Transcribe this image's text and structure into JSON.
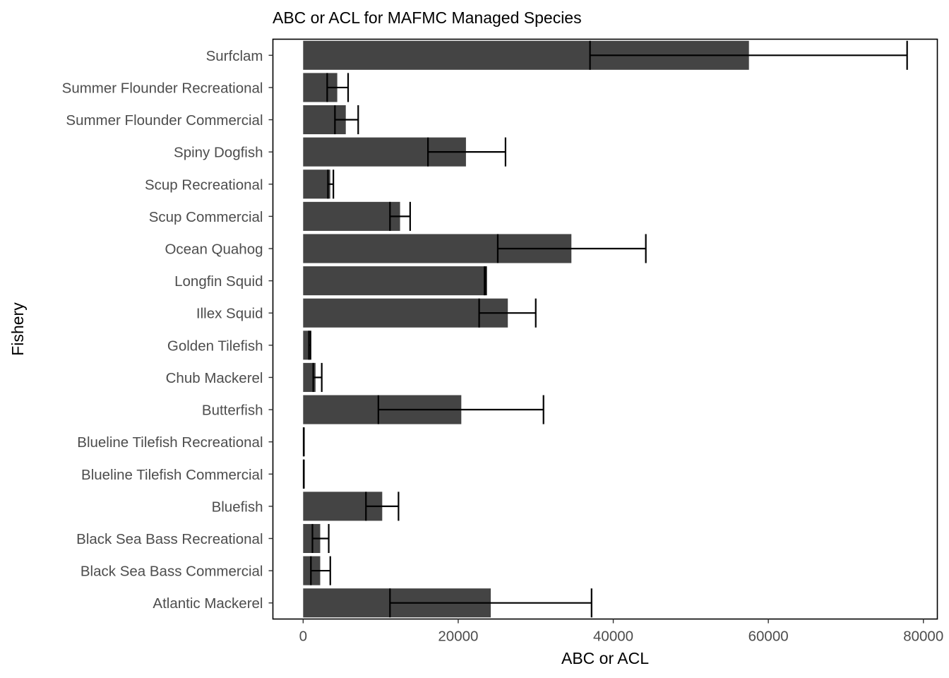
{
  "chart_data": {
    "type": "bar",
    "orientation": "horizontal",
    "title": "ABC or ACL for MAFMC Managed Species",
    "xlabel": "ABC or ACL",
    "ylabel": "Fishery",
    "xlim": [
      -3900,
      81800
    ],
    "x_ticks": [
      0,
      20000,
      40000,
      60000,
      80000
    ],
    "x_tick_labels": [
      "0",
      "20000",
      "40000",
      "60000",
      "80000"
    ],
    "grid": false,
    "legend": "none",
    "bar_color": "#444444",
    "errorbar_color": "#000000",
    "categories": [
      "Atlantic Mackerel",
      "Black Sea Bass Commercial",
      "Black Sea Bass Recreational",
      "Bluefish",
      "Blueline Tilefish Commercial",
      "Blueline Tilefish Recreational",
      "Butterfish",
      "Chub Mackerel",
      "Golden Tilefish",
      "Illex Squid",
      "Longfin Squid",
      "Ocean Quahog",
      "Scup Commercial",
      "Scup Recreational",
      "Spiny Dogfish",
      "Summer Flounder Commercial",
      "Summer Flounder Recreational",
      "Surfclam"
    ],
    "values": [
      24200,
      2200,
      2200,
      10200,
      80,
      80,
      20400,
      1600,
      850,
      26400,
      23500,
      34600,
      12500,
      3500,
      21000,
      5500,
      4400,
      57500
    ],
    "error_low": [
      11200,
      1000,
      1200,
      8100,
      60,
      60,
      9700,
      1300,
      750,
      22700,
      23400,
      25100,
      11200,
      3200,
      16100,
      4100,
      3100,
      37000
    ],
    "error_high": [
      37200,
      3500,
      3300,
      12300,
      100,
      100,
      31000,
      2400,
      950,
      30000,
      23600,
      44200,
      13800,
      3900,
      26100,
      7100,
      5800,
      77900
    ]
  }
}
